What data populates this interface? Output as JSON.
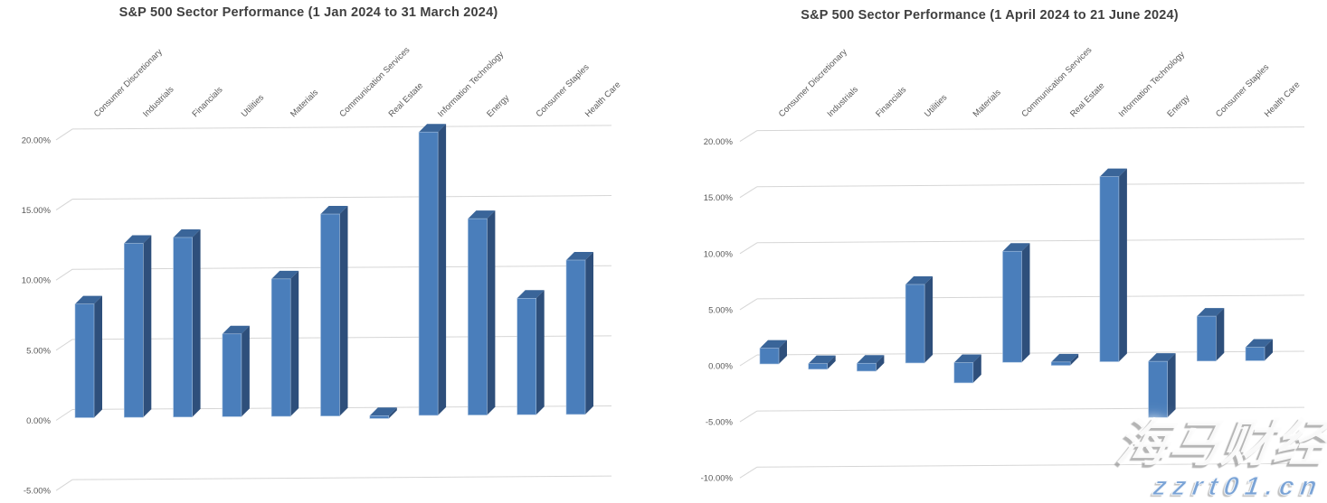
{
  "colors": {
    "bar_front": "#4A7EBB",
    "bar_top": "#3A6599",
    "bar_side": "#2E4F7B",
    "bar_edge_highlight": "#A7C1DF",
    "gridline": "#D6D6D6",
    "axis_text": "#595959",
    "title_text": "#3F3F3F",
    "watermark_url_color": "#7AA3D6"
  },
  "watermark": {
    "brand_text": "海马财经",
    "url_text": "zzrt01.cn"
  },
  "chart_data": [
    {
      "type": "bar",
      "style": "3d-column",
      "title": "S&P 500 Sector Performance (1 Jan 2024 to 31 March 2024)",
      "legend": "none",
      "grid": true,
      "unit": "%",
      "ylim": [
        -5,
        20
      ],
      "yticks": [
        {
          "v": 20,
          "label": "20.00%"
        },
        {
          "v": 15,
          "label": "15.00%"
        },
        {
          "v": 10,
          "label": "10.00%"
        },
        {
          "v": 5,
          "label": "5.00%"
        },
        {
          "v": 0,
          "label": "0.00%"
        },
        {
          "v": -5,
          "label": "-5.00%"
        }
      ],
      "categories": [
        "Consumer Discretionary",
        "Industrials",
        "Financials",
        "Utilities",
        "Materials",
        "Communication Services",
        "Real Estate",
        "Information Technology",
        "Energy",
        "Consumer Staples",
        "Health Care"
      ],
      "values": [
        8.1,
        12.4,
        12.8,
        5.9,
        9.8,
        14.4,
        -0.2,
        20.2,
        14.0,
        8.3,
        11.0
      ]
    },
    {
      "type": "bar",
      "style": "3d-column",
      "title": "S&P 500 Sector Performance (1 April 2024 to 21 June 2024)",
      "legend": "none",
      "grid": true,
      "unit": "%",
      "ylim": [
        -10,
        20
      ],
      "yticks": [
        {
          "v": 20,
          "label": "20.00%"
        },
        {
          "v": 15,
          "label": "15.00%"
        },
        {
          "v": 10,
          "label": "10.00%"
        },
        {
          "v": 5,
          "label": "5.00%"
        },
        {
          "v": 0,
          "label": "0.00%"
        },
        {
          "v": -5,
          "label": "-5.00%"
        },
        {
          "v": -10,
          "label": "-10.00%"
        }
      ],
      "categories": [
        "Consumer Discretionary",
        "Industrials",
        "Financials",
        "Utilities",
        "Materials",
        "Communication Services",
        "Real Estate",
        "Information Technology",
        "Energy",
        "Consumer Staples",
        "Health Care"
      ],
      "values": [
        1.4,
        -0.5,
        -0.7,
        7.0,
        -1.8,
        9.9,
        -0.3,
        16.5,
        -5.0,
        4.0,
        1.2
      ]
    }
  ]
}
